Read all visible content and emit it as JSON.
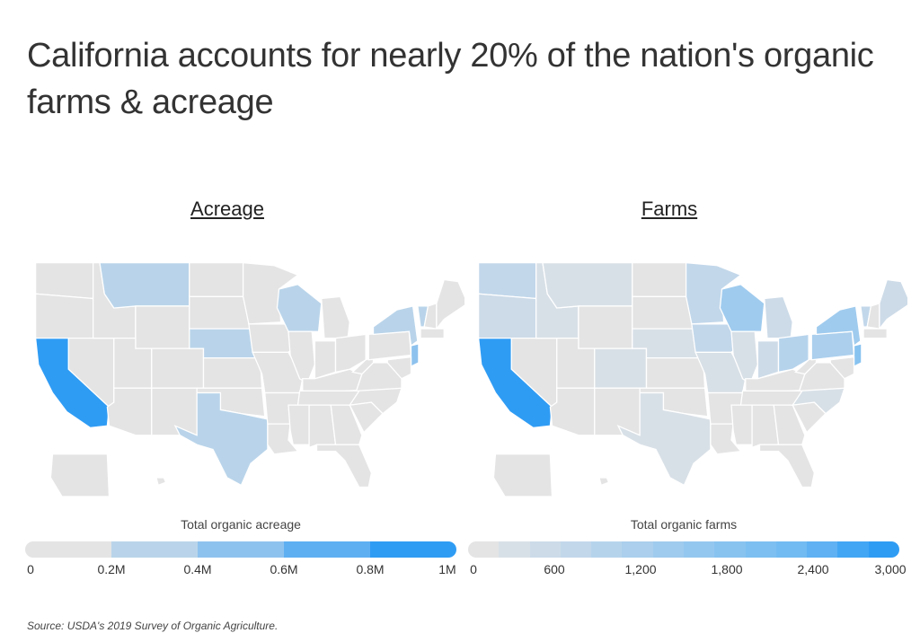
{
  "title": "California accounts for nearly 20% of the nation's organic farms & acreage",
  "source": "Source:  USDA's 2019 Survey of Organic Agriculture.",
  "colors": {
    "base": "#e4e4e4",
    "accent": "#2f9cf4"
  },
  "maps": [
    {
      "title": "Acreage",
      "legend_title": "Total organic acreage",
      "legend_colors": [
        "#e4e4e4",
        "#b9d4ea",
        "#8ec2ee",
        "#5eaff2",
        "#2f9cf4"
      ],
      "ticks": [
        "0",
        "0.2M",
        "0.4M",
        "0.6M",
        "0.8M",
        "1M"
      ],
      "state_fill": {
        "CA": 4,
        "MT": 1,
        "WI": 1,
        "NE": 1,
        "TX": 1,
        "NY": 1,
        "VT": 1,
        "NJ": 2
      }
    },
    {
      "title": "Farms",
      "legend_title": "Total organic farms",
      "legend_colors": [
        "#e4e4e4",
        "#d8e0e7",
        "#cddbe8",
        "#c2d7ea",
        "#b6d3ec",
        "#abcfed",
        "#9fcbee",
        "#94c7ef",
        "#88c3f0",
        "#7dbff1",
        "#72bbf2",
        "#5fb1f3",
        "#43a6f4",
        "#2f9cf4"
      ],
      "ticks": [
        "0",
        "600",
        "1,200",
        "1,800",
        "2,400",
        "3,000"
      ],
      "state_fill": {
        "CA": 13,
        "WA": 3,
        "OR": 2,
        "ID": 1,
        "MT": 1,
        "UT": 0,
        "CO": 1,
        "NE": 1,
        "TX": 1,
        "MN": 3,
        "IA": 3,
        "MO": 1,
        "IL": 1,
        "WI": 6,
        "MI": 2,
        "IN": 2,
        "OH": 4,
        "PA": 5,
        "NY": 6,
        "VT": 3,
        "ME": 2,
        "NC": 1,
        "NJ": 8,
        "KY": 0
      }
    }
  ]
}
